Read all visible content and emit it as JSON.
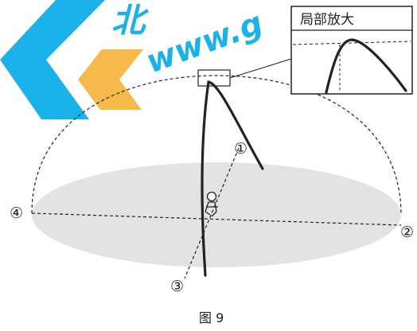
{
  "watermark": {
    "brand_text": "北",
    "url_text": "www.g",
    "colors": {
      "blue": "#1bb1ea",
      "orange": "#f6b94a"
    }
  },
  "inset": {
    "label": "局部放大"
  },
  "directions": [
    {
      "label": "①"
    },
    {
      "label": "②"
    },
    {
      "label": "③"
    },
    {
      "label": "④"
    }
  ],
  "caption": "图 9",
  "colors": {
    "ground": "#e3e3e3",
    "line": "#222222"
  }
}
